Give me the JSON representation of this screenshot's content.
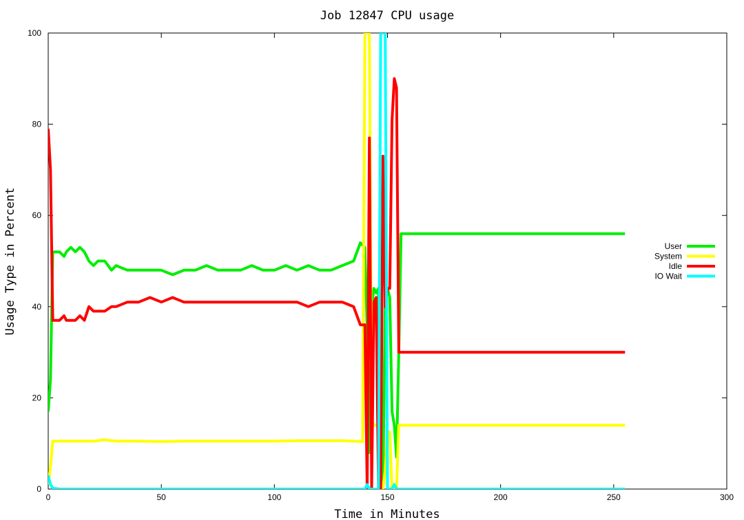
{
  "chart_data": {
    "type": "line",
    "title": "Job 12847 CPU usage",
    "xlabel": "Time in Minutes",
    "ylabel": "Usage Type in Percent",
    "xlim": [
      0,
      300
    ],
    "ylim": [
      0,
      100
    ],
    "xticks": [
      0,
      50,
      100,
      150,
      200,
      250,
      300
    ],
    "yticks": [
      0,
      20,
      40,
      60,
      80,
      100
    ],
    "grid": false,
    "legend_position": "right",
    "series": [
      {
        "name": "User",
        "color": "#00ee00",
        "x": [
          0,
          1,
          2,
          3,
          5,
          7,
          8,
          10,
          12,
          14,
          16,
          18,
          20,
          22,
          25,
          28,
          30,
          35,
          40,
          45,
          50,
          55,
          60,
          65,
          70,
          75,
          80,
          85,
          90,
          95,
          100,
          105,
          110,
          115,
          120,
          125,
          130,
          135,
          138,
          140,
          141,
          142,
          143,
          144,
          145,
          146,
          147,
          148,
          149,
          150,
          151,
          152,
          153,
          154,
          155,
          156,
          160,
          170,
          180,
          190,
          200,
          210,
          220,
          230,
          240,
          250,
          255
        ],
        "y": [
          17,
          24,
          52,
          52,
          52,
          51,
          52,
          53,
          52,
          53,
          52,
          50,
          49,
          50,
          50,
          48,
          49,
          48,
          48,
          48,
          48,
          47,
          48,
          48,
          49,
          48,
          48,
          48,
          49,
          48,
          48,
          49,
          48,
          49,
          48,
          48,
          49,
          50,
          54,
          53,
          35,
          8,
          40,
          44,
          43,
          44,
          0,
          0,
          42,
          44,
          42,
          17,
          14,
          7,
          30,
          56,
          56,
          56,
          56,
          56,
          56,
          56,
          56,
          56,
          56,
          56,
          56
        ]
      },
      {
        "name": "System",
        "color": "#ffff00",
        "x": [
          0,
          1,
          2,
          3,
          10,
          20,
          25,
          30,
          40,
          50,
          60,
          70,
          80,
          90,
          100,
          110,
          120,
          130,
          139,
          140,
          141,
          142,
          143,
          144,
          145,
          146,
          147,
          148,
          149,
          150,
          151,
          152,
          153,
          154,
          155,
          160,
          170,
          180,
          190,
          200,
          210,
          220,
          230,
          240,
          250,
          255
        ],
        "y": [
          1,
          5,
          10.5,
          10.5,
          10.5,
          10.5,
          10.8,
          10.5,
          10.5,
          10.4,
          10.5,
          10.5,
          10.5,
          10.5,
          10.5,
          10.6,
          10.6,
          10.6,
          10.4,
          100,
          100,
          100,
          15,
          14,
          14,
          14,
          0,
          0,
          4,
          12.5,
          12.5,
          0,
          0,
          0,
          14,
          14,
          14,
          14,
          14,
          14,
          14,
          14,
          14,
          14,
          14,
          14
        ]
      },
      {
        "name": "Idle",
        "color": "#ff0000",
        "x": [
          0,
          1,
          2,
          3,
          5,
          7,
          8,
          10,
          12,
          14,
          16,
          18,
          20,
          22,
          25,
          28,
          30,
          35,
          40,
          45,
          50,
          55,
          60,
          65,
          70,
          75,
          80,
          85,
          90,
          95,
          100,
          105,
          110,
          115,
          120,
          125,
          130,
          135,
          138,
          140,
          141,
          142,
          143,
          144,
          145,
          146,
          147,
          148,
          149,
          150,
          151,
          152,
          153,
          154,
          155,
          156,
          160,
          170,
          180,
          190,
          200,
          210,
          220,
          230,
          240,
          250,
          255
        ],
        "y": [
          79,
          70,
          37,
          37,
          37,
          38,
          37,
          37,
          37,
          38,
          37,
          40,
          39,
          39,
          39,
          40,
          40,
          41,
          41,
          42,
          41,
          42,
          41,
          41,
          41,
          41,
          41,
          41,
          41,
          41,
          41,
          41,
          41,
          40,
          41,
          41,
          41,
          40,
          36,
          36,
          0,
          77,
          0,
          41,
          42,
          0,
          0,
          73,
          40,
          44,
          44,
          81,
          90,
          88,
          30,
          30,
          30,
          30,
          30,
          30,
          30,
          30,
          30,
          30,
          30,
          30,
          30
        ]
      },
      {
        "name": "IO Wait",
        "color": "#00ffff",
        "x": [
          0,
          1,
          2,
          5,
          20,
          50,
          100,
          130,
          140,
          141,
          142,
          143,
          144,
          145,
          146,
          147,
          148,
          149,
          150,
          151,
          152,
          153,
          154,
          155,
          160,
          200,
          255
        ],
        "y": [
          3,
          1,
          0.2,
          0,
          0,
          0,
          0,
          0,
          0,
          1,
          0,
          0,
          0,
          0,
          0,
          100,
          100,
          100,
          0,
          0,
          0,
          1,
          0,
          0,
          0,
          0,
          0
        ]
      }
    ]
  }
}
